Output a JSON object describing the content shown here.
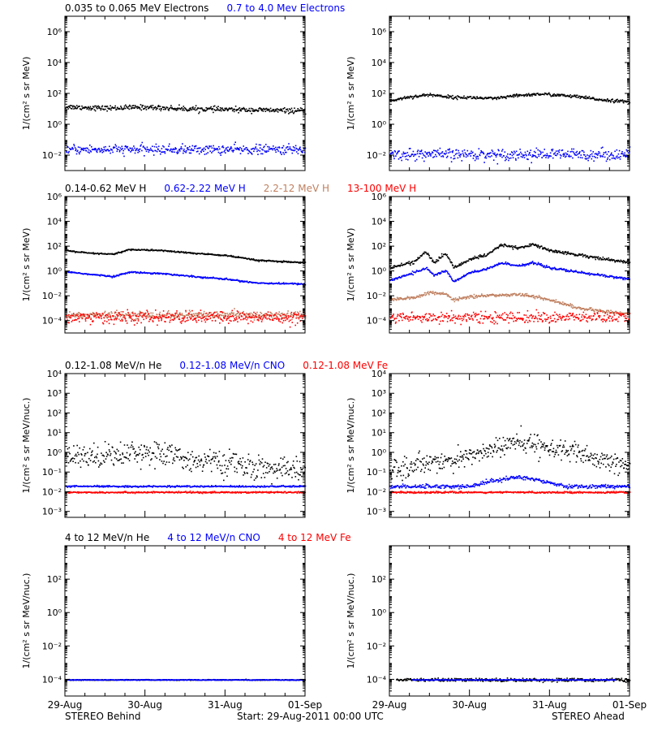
{
  "colors": {
    "black": "#000000",
    "blue": "#0000ff",
    "tan": "#c08060",
    "red": "#ff0000"
  },
  "footer": {
    "left": "STEREO Behind",
    "center": "Start: 29-Aug-2011 00:00 UTC",
    "right": "STEREO Ahead"
  },
  "x_axis": {
    "tick_labels": [
      "29-Aug",
      "30-Aug",
      "31-Aug",
      "01-Sep"
    ],
    "tick_values": [
      0,
      1,
      2,
      3
    ]
  },
  "chart_data": [
    {
      "type": "scatter",
      "row": "electrons",
      "side": "behind",
      "ylabel": "1/(cm² s sr MeV)",
      "yscale": "log",
      "ylim": [
        0.001,
        10000000
      ],
      "y_ticks": [
        {
          "v": 0.01,
          "label": "10⁻²"
        },
        {
          "v": 1,
          "label": "10⁰"
        },
        {
          "v": 100,
          "label": "10²"
        },
        {
          "v": 10000,
          "label": "10⁴"
        },
        {
          "v": 1000000,
          "label": "10⁶"
        }
      ],
      "legend": [
        {
          "text": "0.035 to 0.065 MeV Electrons",
          "color": "#000000"
        },
        {
          "text": "0.7 to 4.0 Mev Electrons",
          "color": "#0000ff"
        }
      ],
      "series": [
        {
          "name": "0.035 to 0.065 MeV Electrons",
          "color": "#000000",
          "x": [
            0,
            0.5,
            1,
            1.5,
            2,
            2.5,
            3
          ],
          "y": [
            15,
            12,
            14,
            11,
            10,
            9,
            8
          ],
          "scatter_dex": 0.08
        },
        {
          "name": "0.7 to 4.0 Mev Electrons",
          "color": "#0000ff",
          "x": [
            0,
            1,
            2,
            3
          ],
          "y": [
            0.025,
            0.025,
            0.025,
            0.025
          ],
          "scatter_dex": 0.15
        }
      ]
    },
    {
      "type": "scatter",
      "row": "electrons",
      "side": "ahead",
      "ylabel": "1/(cm² s sr MeV)",
      "yscale": "log",
      "ylim": [
        0.001,
        10000000
      ],
      "y_ticks": [
        {
          "v": 0.01,
          "label": "10⁻²"
        },
        {
          "v": 1,
          "label": "10⁰"
        },
        {
          "v": 100,
          "label": "10²"
        },
        {
          "v": 10000,
          "label": "10⁴"
        },
        {
          "v": 1000000,
          "label": "10⁶"
        }
      ],
      "legend": [],
      "series": [
        {
          "name": "0.035 to 0.065 MeV Electrons",
          "color": "#000000",
          "x": [
            0,
            0.2,
            0.5,
            0.8,
            1.0,
            1.3,
            1.6,
            1.9,
            2.3,
            2.6,
            3
          ],
          "y": [
            35,
            60,
            90,
            60,
            60,
            50,
            80,
            100,
            70,
            45,
            30
          ],
          "scatter_dex": 0.05
        },
        {
          "name": "0.7 to 4.0 Mev Electrons",
          "color": "#0000ff",
          "x": [
            0,
            1,
            2,
            3
          ],
          "y": [
            0.012,
            0.012,
            0.012,
            0.012
          ],
          "scatter_dex": 0.18
        }
      ]
    },
    {
      "type": "scatter",
      "row": "protons",
      "side": "behind",
      "ylabel": "1/(cm² s sr MeV)",
      "yscale": "log",
      "ylim": [
        1e-05,
        1000000
      ],
      "y_ticks": [
        {
          "v": 0.0001,
          "label": "10⁻⁴"
        },
        {
          "v": 0.01,
          "label": "10⁻²"
        },
        {
          "v": 1,
          "label": "10⁰"
        },
        {
          "v": 100,
          "label": "10²"
        },
        {
          "v": 10000,
          "label": "10⁴"
        },
        {
          "v": 1000000,
          "label": "10⁶"
        }
      ],
      "legend": [
        {
          "text": "0.14-0.62 MeV H",
          "color": "#000000"
        },
        {
          "text": "0.62-2.22 MeV H",
          "color": "#0000ff"
        },
        {
          "text": "2.2-12 MeV H",
          "color": "#c08060"
        },
        {
          "text": "13-100 MeV H",
          "color": "#ff0000"
        }
      ],
      "series": [
        {
          "name": "0.14-0.62 MeV H",
          "color": "#000000",
          "x": [
            0,
            0.3,
            0.6,
            0.8,
            1.2,
            1.6,
            2.0,
            2.4,
            3
          ],
          "y": [
            50,
            30,
            25,
            60,
            50,
            30,
            20,
            8,
            5
          ],
          "scatter_dex": 0.03
        },
        {
          "name": "0.62-2.22 MeV H",
          "color": "#0000ff",
          "x": [
            0,
            0.3,
            0.6,
            0.8,
            1.2,
            1.6,
            2.0,
            2.4,
            3
          ],
          "y": [
            1.0,
            0.6,
            0.4,
            0.9,
            0.7,
            0.4,
            0.25,
            0.12,
            0.1
          ],
          "scatter_dex": 0.03
        },
        {
          "name": "2.2-12 MeV H",
          "color": "#c08060",
          "x": [
            0,
            1,
            2,
            3
          ],
          "y": [
            0.0003,
            0.0003,
            0.0003,
            0.0003
          ],
          "scatter_dex": 0.15
        },
        {
          "name": "13-100 MeV H",
          "color": "#ff0000",
          "x": [
            0,
            1,
            2,
            3
          ],
          "y": [
            0.0002,
            0.0002,
            0.0002,
            0.0002
          ],
          "scatter_dex": 0.25
        }
      ]
    },
    {
      "type": "scatter",
      "row": "protons",
      "side": "ahead",
      "ylabel": "1/(cm² s sr MeV)",
      "yscale": "log",
      "ylim": [
        1e-05,
        1000000
      ],
      "y_ticks": [
        {
          "v": 0.0001,
          "label": "10⁻⁴"
        },
        {
          "v": 0.01,
          "label": "10⁻²"
        },
        {
          "v": 1,
          "label": "10⁰"
        },
        {
          "v": 100,
          "label": "10²"
        },
        {
          "v": 10000,
          "label": "10⁴"
        },
        {
          "v": 1000000,
          "label": "10⁶"
        }
      ],
      "legend": [],
      "series": [
        {
          "name": "0.14-0.62 MeV H",
          "color": "#000000",
          "x": [
            0,
            0.3,
            0.45,
            0.55,
            0.7,
            0.8,
            1.0,
            1.2,
            1.4,
            1.6,
            1.8,
            2.0,
            2.4,
            3
          ],
          "y": [
            2,
            6,
            40,
            5,
            30,
            2,
            10,
            20,
            150,
            80,
            150,
            50,
            20,
            5
          ],
          "scatter_dex": 0.06
        },
        {
          "name": "0.62-2.22 MeV H",
          "color": "#0000ff",
          "x": [
            0,
            0.3,
            0.45,
            0.55,
            0.7,
            0.8,
            1.0,
            1.2,
            1.4,
            1.6,
            1.8,
            2.0,
            2.4,
            3
          ],
          "y": [
            0.2,
            0.8,
            2,
            0.5,
            1.2,
            0.15,
            0.8,
            1.5,
            5,
            3,
            5,
            2,
            0.8,
            0.25
          ],
          "scatter_dex": 0.05
        },
        {
          "name": "2.2-12 MeV H",
          "color": "#c08060",
          "x": [
            0,
            0.3,
            0.5,
            0.7,
            0.8,
            1.0,
            1.3,
            1.6,
            1.8,
            2.0,
            2.4,
            2.8,
            3
          ],
          "y": [
            0.005,
            0.008,
            0.02,
            0.015,
            0.005,
            0.01,
            0.012,
            0.015,
            0.01,
            0.005,
            0.001,
            0.0005,
            0.0004
          ],
          "scatter_dex": 0.06
        },
        {
          "name": "13-100 MeV H",
          "color": "#ff0000",
          "x": [
            0,
            1,
            2,
            3
          ],
          "y": [
            0.0002,
            0.0002,
            0.0002,
            0.0002
          ],
          "scatter_dex": 0.22
        }
      ]
    },
    {
      "type": "scatter",
      "row": "heavy-low",
      "side": "behind",
      "ylabel": "1/(cm² s sr MeV/nuc.)",
      "yscale": "log",
      "ylim": [
        0.0005,
        10000
      ],
      "y_ticks": [
        {
          "v": 0.001,
          "label": "10⁻³"
        },
        {
          "v": 0.01,
          "label": "10⁻²"
        },
        {
          "v": 0.1,
          "label": "10⁻¹"
        },
        {
          "v": 1,
          "label": "10⁰"
        },
        {
          "v": 10,
          "label": "10¹"
        },
        {
          "v": 100,
          "label": "10²"
        },
        {
          "v": 1000,
          "label": "10³"
        },
        {
          "v": 10000,
          "label": "10⁴"
        }
      ],
      "legend": [
        {
          "text": "0.12-1.08 MeV/n He",
          "color": "#000000"
        },
        {
          "text": "0.12-1.08 MeV/n CNO",
          "color": "#0000ff"
        },
        {
          "text": "0.12-1.08 MeV Fe",
          "color": "#ff0000"
        }
      ],
      "series": [
        {
          "name": "0.12-1.08 MeV/n He",
          "color": "#000000",
          "x": [
            0,
            0.5,
            1.0,
            1.5,
            2.0,
            2.5,
            3
          ],
          "y": [
            0.6,
            0.8,
            1.2,
            0.5,
            0.3,
            0.15,
            0.15
          ],
          "scatter_dex": 0.3
        },
        {
          "name": "0.12-1.08 MeV/n CNO",
          "color": "#0000ff",
          "x": [
            0,
            1,
            2,
            3
          ],
          "y": [
            0.02,
            0.02,
            0.02,
            0.02
          ],
          "scatter_dex": 0.02
        },
        {
          "name": "0.12-1.08 MeV Fe",
          "color": "#ff0000",
          "x": [
            0,
            1,
            2,
            3
          ],
          "y": [
            0.01,
            0.01,
            0.01,
            0.01
          ],
          "scatter_dex": 0.02
        }
      ]
    },
    {
      "type": "scatter",
      "row": "heavy-low",
      "side": "ahead",
      "ylabel": "1/(cm² s sr MeV/nuc.)",
      "yscale": "log",
      "ylim": [
        0.0005,
        10000
      ],
      "y_ticks": [
        {
          "v": 0.001,
          "label": "10⁻³"
        },
        {
          "v": 0.01,
          "label": "10⁻²"
        },
        {
          "v": 0.1,
          "label": "10⁻¹"
        },
        {
          "v": 1,
          "label": "10⁰"
        },
        {
          "v": 10,
          "label": "10¹"
        },
        {
          "v": 100,
          "label": "10²"
        },
        {
          "v": 1000,
          "label": "10³"
        },
        {
          "v": 10000,
          "label": "10⁴"
        }
      ],
      "legend": [],
      "series": [
        {
          "name": "0.12-1.08 MeV/n He",
          "color": "#000000",
          "x": [
            0,
            0.3,
            0.6,
            0.8,
            1.0,
            1.2,
            1.5,
            1.8,
            2.0,
            2.3,
            2.6,
            3
          ],
          "y": [
            0.15,
            0.2,
            0.5,
            0.3,
            0.8,
            1.2,
            3,
            3,
            2,
            1,
            0.4,
            0.2
          ],
          "scatter_dex": 0.25
        },
        {
          "name": "0.12-1.08 MeV/n CNO",
          "color": "#0000ff",
          "x": [
            0,
            1.0,
            1.3,
            1.6,
            1.9,
            2.2,
            3
          ],
          "y": [
            0.02,
            0.02,
            0.04,
            0.06,
            0.04,
            0.02,
            0.02
          ],
          "scatter_dex": 0.05
        },
        {
          "name": "0.12-1.08 MeV Fe",
          "color": "#ff0000",
          "x": [
            0,
            1,
            2,
            3
          ],
          "y": [
            0.01,
            0.01,
            0.01,
            0.01
          ],
          "scatter_dex": 0.02
        }
      ]
    },
    {
      "type": "scatter",
      "row": "heavy-high",
      "side": "behind",
      "ylabel": "1/(cm² s sr MeV/nuc.)",
      "yscale": "log",
      "ylim": [
        1e-05,
        10000
      ],
      "y_ticks": [
        {
          "v": 0.0001,
          "label": "10⁻⁴"
        },
        {
          "v": 0.01,
          "label": "10⁻²"
        },
        {
          "v": 1,
          "label": "10⁰"
        },
        {
          "v": 100,
          "label": "10²"
        }
      ],
      "legend": [
        {
          "text": "4 to 12 MeV/n He",
          "color": "#000000"
        },
        {
          "text": "4 to 12 MeV/n CNO",
          "color": "#0000ff"
        },
        {
          "text": "4 to 12 MeV Fe",
          "color": "#ff0000"
        }
      ],
      "series": [
        {
          "name": "4 to 12 MeV/n He",
          "color": "#000000",
          "x": [
            0,
            3
          ],
          "y": [
            0.0001,
            0.0001
          ],
          "scatter_dex": 0.01
        },
        {
          "name": "4 to 12 MeV/n CNO",
          "color": "#0000ff",
          "x": [
            0,
            3
          ],
          "y": [
            0.0001,
            0.0001
          ],
          "scatter_dex": 0.01
        }
      ]
    },
    {
      "type": "scatter",
      "row": "heavy-high",
      "side": "ahead",
      "ylabel": "1/(cm² s sr MeV/nuc.)",
      "yscale": "log",
      "ylim": [
        1e-05,
        10000
      ],
      "y_ticks": [
        {
          "v": 0.0001,
          "label": "10⁻⁴"
        },
        {
          "v": 0.01,
          "label": "10⁻²"
        },
        {
          "v": 1,
          "label": "10⁰"
        },
        {
          "v": 100,
          "label": "10²"
        }
      ],
      "legend": [],
      "series": [
        {
          "name": "4 to 12 MeV/n He",
          "color": "#000000",
          "x": [
            0.1,
            3
          ],
          "y": [
            0.0001,
            0.0001
          ],
          "scatter_dex": 0.05
        },
        {
          "name": "4 to 12 MeV/n CNO",
          "color": "#0000ff",
          "x": [
            0.3,
            2.8
          ],
          "y": [
            0.0001,
            0.0001
          ],
          "scatter_dex": 0.01
        }
      ]
    }
  ]
}
